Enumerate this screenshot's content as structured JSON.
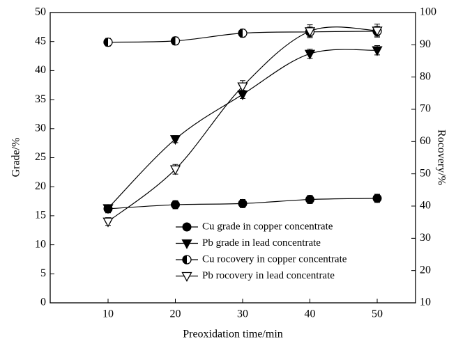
{
  "chart_data": {
    "type": "line",
    "x_label": "Preoxidation time/min",
    "y_label": "Grade/%",
    "y2_label": "Rocovery/%",
    "x": [
      10,
      20,
      30,
      40,
      50
    ],
    "xlim": [
      1.4,
      55.7
    ],
    "xticks": [
      10,
      20,
      30,
      40,
      50
    ],
    "ylim": [
      0,
      50
    ],
    "yticks": [
      0,
      5,
      10,
      15,
      20,
      25,
      30,
      35,
      40,
      45,
      50
    ],
    "y2lim": [
      10,
      100
    ],
    "y2ticks": [
      10,
      20,
      30,
      40,
      50,
      60,
      70,
      80,
      90,
      100
    ],
    "legend": "lower right",
    "series": [
      {
        "name": "Cu grade in copper concentrate",
        "color": "#000000",
        "marker": "circle",
        "values": [
          16.2,
          16.9,
          17.1,
          17.8,
          18.0
        ],
        "errors": [
          0.7,
          0.7,
          0.7,
          0.7,
          0.7
        ]
      },
      {
        "name": "Pb grade in lead concentrate",
        "color": "#000000",
        "marker": "triangle-down",
        "values": [
          16.3,
          28.2,
          35.9,
          42.9,
          43.5
        ],
        "errors": [
          0.6,
          0.6,
          0.7,
          0.8,
          0.8
        ]
      },
      {
        "name": "Cu rocovery in copper concentrate",
        "color": "#000000",
        "marker": "half-circle",
        "axis": "y2",
        "values": [
          90.8,
          91.2,
          93.6,
          94.0,
          94.2
        ],
        "errors": [
          1.2,
          1.2,
          1.2,
          1.5,
          1.5
        ]
      },
      {
        "name": "Pb rocovery in lead concentrate",
        "color": "#000000",
        "marker": "open-triangle-down",
        "axis": "y2",
        "values": [
          35.2,
          51.4,
          77.1,
          94.2,
          94.4
        ],
        "errors": [
          1.2,
          1.5,
          1.8,
          2.0,
          2.0
        ]
      }
    ]
  }
}
